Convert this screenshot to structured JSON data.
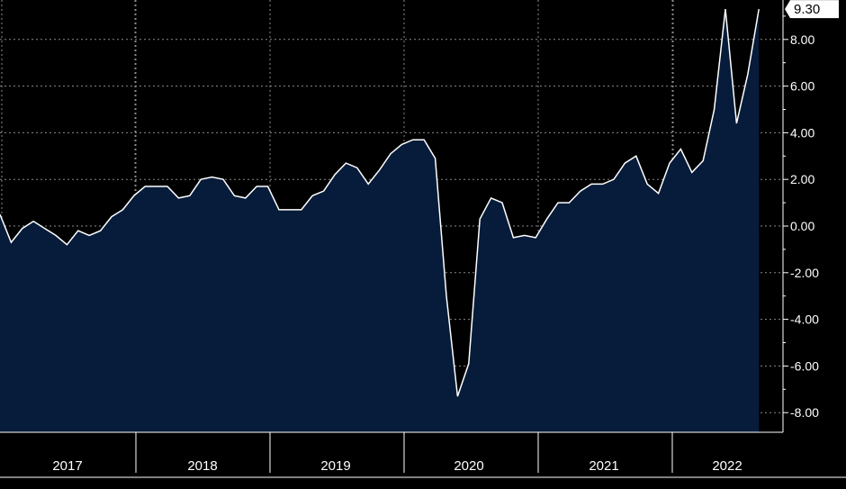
{
  "chart_data": {
    "type": "area",
    "title": "",
    "xlabel": "",
    "ylabel": "",
    "ylim": [
      -9,
      9.5
    ],
    "ytick_values": [
      8,
      6,
      4,
      2,
      0,
      -2,
      -4,
      -6,
      -8
    ],
    "ytick_labels": [
      "8.00",
      "6.00",
      "4.00",
      "2.00",
      "0.00",
      "-2.00",
      "-4.00",
      "-6.00",
      "-8.00"
    ],
    "year_labels": [
      "2017",
      "2018",
      "2019",
      "2020",
      "2021",
      "2022"
    ],
    "last_value_label": "9.30",
    "grid": true,
    "colors": {
      "background": "#000000",
      "area_fill": "#071c3a",
      "line": "#ffffff",
      "grid": "#8a8a8a"
    },
    "series": [
      {
        "x": [
          "2016-12",
          "2017-01",
          "2017-02",
          "2017-03",
          "2017-04",
          "2017-05",
          "2017-06",
          "2017-07",
          "2017-08",
          "2017-09",
          "2017-10",
          "2017-11",
          "2017-12",
          "2018-01",
          "2018-02",
          "2018-03",
          "2018-04",
          "2018-05",
          "2018-06",
          "2018-07",
          "2018-08",
          "2018-09",
          "2018-10",
          "2018-11",
          "2018-12",
          "2019-01",
          "2019-02",
          "2019-03",
          "2019-04",
          "2019-05",
          "2019-06",
          "2019-07",
          "2019-08",
          "2019-09",
          "2019-10",
          "2019-11",
          "2019-12",
          "2020-01",
          "2020-02",
          "2020-03",
          "2020-04",
          "2020-05",
          "2020-06",
          "2020-07",
          "2020-08",
          "2020-09",
          "2020-10",
          "2020-11",
          "2020-12",
          "2021-01",
          "2021-02",
          "2021-03",
          "2021-04",
          "2021-05",
          "2021-06",
          "2021-07",
          "2021-08",
          "2021-09",
          "2021-10",
          "2021-11",
          "2021-12",
          "2022-01",
          "2022-02",
          "2022-03",
          "2022-04",
          "2022-05",
          "2022-06",
          "2022-07",
          "2022-08"
        ],
        "values": [
          0.5,
          -0.7,
          -0.1,
          0.2,
          -0.1,
          -0.4,
          -0.8,
          -0.2,
          -0.4,
          -0.2,
          0.4,
          0.7,
          1.3,
          1.7,
          1.7,
          1.7,
          1.2,
          1.3,
          2.0,
          2.1,
          2.0,
          1.3,
          1.2,
          1.7,
          1.7,
          0.7,
          0.7,
          0.7,
          1.3,
          1.5,
          2.2,
          2.7,
          2.5,
          1.8,
          2.4,
          3.1,
          3.5,
          3.7,
          3.7,
          2.9,
          -3.0,
          -7.3,
          -5.9,
          0.3,
          1.2,
          1.0,
          -0.5,
          -0.4,
          -0.5,
          0.3,
          1.0,
          1.0,
          1.5,
          1.8,
          1.8,
          2.0,
          2.7,
          3.0,
          1.8,
          1.4,
          2.7,
          3.3,
          2.3,
          2.8,
          5.0,
          9.3,
          4.4,
          6.5,
          9.3
        ]
      }
    ]
  }
}
